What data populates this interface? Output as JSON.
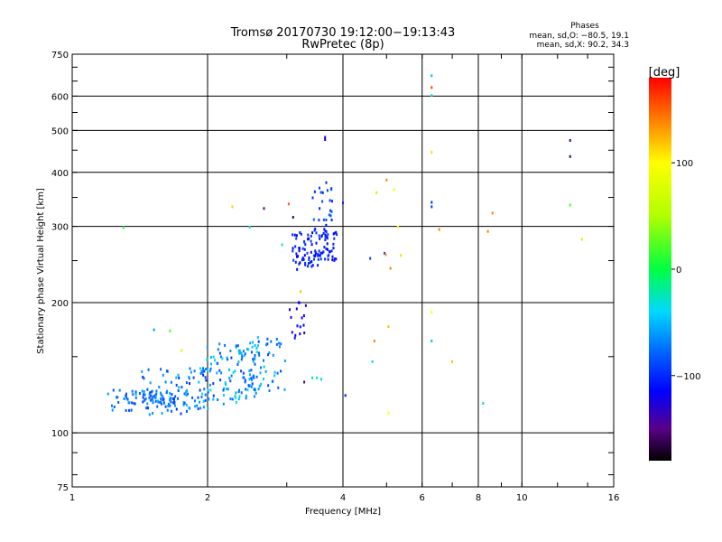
{
  "chart_data": {
    "type": "scatter",
    "title": "Tromsø 20170730 19:12:00−19:13:43",
    "subtitle": "RwPretec (8p)",
    "xlabel": "Frequency [MHz]",
    "ylabel": "Stationary phase Virtual Height [km]",
    "x_scale": "log",
    "y_scale": "log",
    "xlim": [
      1,
      16
    ],
    "ylim": [
      75,
      750
    ],
    "x_ticks": [
      1,
      2,
      4,
      6,
      8,
      10,
      16
    ],
    "x_tick_labels": [
      "1",
      "2",
      "4",
      "6",
      "8",
      "10",
      "16"
    ],
    "y_ticks": [
      75,
      100,
      200,
      300,
      400,
      500,
      600,
      750
    ],
    "y_tick_labels": [
      "75",
      "100",
      "200",
      "300",
      "400",
      "500",
      "600",
      "750"
    ],
    "grid": true,
    "info": {
      "heading": "Phases",
      "line1": "mean, sd,O: −80.5, 19.1",
      "line2": "mean, sd,X:  90.2, 34.3"
    },
    "colorbar": {
      "label": "[deg]",
      "range": [
        -180,
        180
      ],
      "ticks": [
        100,
        0,
        -100
      ],
      "tick_labels": [
        "100",
        "0",
        "−100"
      ],
      "stops": [
        {
          "v": -180,
          "color": "#000000"
        },
        {
          "v": -150,
          "color": "#5a0088"
        },
        {
          "v": -115,
          "color": "#0000ff"
        },
        {
          "v": -80,
          "color": "#0060ff"
        },
        {
          "v": -40,
          "color": "#00d8ff"
        },
        {
          "v": 0,
          "color": "#00ff40"
        },
        {
          "v": 50,
          "color": "#b0ff00"
        },
        {
          "v": 100,
          "color": "#ffff00"
        },
        {
          "v": 140,
          "color": "#ff8000"
        },
        {
          "v": 180,
          "color": "#ff0000"
        }
      ]
    },
    "clusters": [
      {
        "x": [
          1.2,
          1.8
        ],
        "y": [
          113,
          126
        ],
        "n": 90,
        "phase": [
          -95,
          -55
        ],
        "jitter": 0.04
      },
      {
        "x": [
          1.45,
          2.0
        ],
        "y": [
          108,
          145
        ],
        "n": 70,
        "phase": [
          -100,
          -45
        ],
        "jitter": 0.05
      },
      {
        "x": [
          1.9,
          2.6
        ],
        "y": [
          115,
          165
        ],
        "n": 110,
        "phase": [
          -95,
          -30
        ],
        "jitter": 0.05
      },
      {
        "x": [
          2.3,
          2.95
        ],
        "y": [
          120,
          170
        ],
        "n": 60,
        "phase": [
          -90,
          -40
        ],
        "jitter": 0.04
      },
      {
        "x": [
          3.05,
          3.3
        ],
        "y": [
          160,
          205
        ],
        "n": 16,
        "phase": [
          -130,
          -110
        ],
        "jitter": 0.01
      },
      {
        "x": [
          3.1,
          3.85
        ],
        "y": [
          240,
          300
        ],
        "n": 110,
        "phase": [
          -120,
          -90
        ],
        "jitter": 0.03
      },
      {
        "x": [
          3.4,
          3.8
        ],
        "y": [
          300,
          385
        ],
        "n": 22,
        "phase": [
          -105,
          -80
        ],
        "jitter": 0.02
      }
    ],
    "points": [
      {
        "x": 1.3,
        "y": 298,
        "phase": 10
      },
      {
        "x": 1.52,
        "y": 173,
        "phase": -60
      },
      {
        "x": 1.65,
        "y": 172,
        "phase": 20
      },
      {
        "x": 1.75,
        "y": 155,
        "phase": 70
      },
      {
        "x": 2.27,
        "y": 333,
        "phase": 115
      },
      {
        "x": 2.48,
        "y": 299,
        "phase": -30
      },
      {
        "x": 2.67,
        "y": 330,
        "phase": -150
      },
      {
        "x": 2.93,
        "y": 272,
        "phase": -20
      },
      {
        "x": 3.03,
        "y": 338,
        "phase": 150
      },
      {
        "x": 3.1,
        "y": 315,
        "phase": -160
      },
      {
        "x": 3.22,
        "y": 212,
        "phase": 120
      },
      {
        "x": 3.28,
        "y": 131,
        "phase": -140
      },
      {
        "x": 3.42,
        "y": 134,
        "phase": -20
      },
      {
        "x": 3.5,
        "y": 134,
        "phase": -25
      },
      {
        "x": 3.58,
        "y": 133,
        "phase": -30
      },
      {
        "x": 3.65,
        "y": 482,
        "phase": -130
      },
      {
        "x": 3.65,
        "y": 476,
        "phase": -125
      },
      {
        "x": 4.0,
        "y": 340,
        "phase": -100
      },
      {
        "x": 4.05,
        "y": 122,
        "phase": -105
      },
      {
        "x": 4.6,
        "y": 253,
        "phase": -95
      },
      {
        "x": 4.65,
        "y": 146,
        "phase": -40
      },
      {
        "x": 4.7,
        "y": 163,
        "phase": 140
      },
      {
        "x": 4.75,
        "y": 359,
        "phase": 60
      },
      {
        "x": 4.95,
        "y": 260,
        "phase": -90
      },
      {
        "x": 4.98,
        "y": 258,
        "phase": 135
      },
      {
        "x": 5.0,
        "y": 384,
        "phase": 140
      },
      {
        "x": 5.05,
        "y": 176,
        "phase": 120
      },
      {
        "x": 5.05,
        "y": 111,
        "phase": 100
      },
      {
        "x": 5.1,
        "y": 240,
        "phase": 140
      },
      {
        "x": 5.2,
        "y": 365,
        "phase": 95
      },
      {
        "x": 5.3,
        "y": 299,
        "phase": 100
      },
      {
        "x": 5.38,
        "y": 257,
        "phase": 60
      },
      {
        "x": 6.3,
        "y": 669,
        "phase": -50
      },
      {
        "x": 6.3,
        "y": 628,
        "phase": 160
      },
      {
        "x": 6.3,
        "y": 602,
        "phase": -30
      },
      {
        "x": 6.3,
        "y": 445,
        "phase": 110
      },
      {
        "x": 6.3,
        "y": 341,
        "phase": -100
      },
      {
        "x": 6.3,
        "y": 333,
        "phase": -95
      },
      {
        "x": 6.3,
        "y": 190,
        "phase": 100
      },
      {
        "x": 6.3,
        "y": 163,
        "phase": -50
      },
      {
        "x": 6.55,
        "y": 295,
        "phase": 140
      },
      {
        "x": 7.0,
        "y": 146,
        "phase": 120
      },
      {
        "x": 8.2,
        "y": 117,
        "phase": -40
      },
      {
        "x": 8.4,
        "y": 292,
        "phase": 140
      },
      {
        "x": 8.6,
        "y": 322,
        "phase": 140
      },
      {
        "x": 12.8,
        "y": 474,
        "phase": -155
      },
      {
        "x": 12.8,
        "y": 435,
        "phase": -160
      },
      {
        "x": 12.8,
        "y": 336,
        "phase": 20
      },
      {
        "x": 13.6,
        "y": 280,
        "phase": 110
      }
    ]
  }
}
